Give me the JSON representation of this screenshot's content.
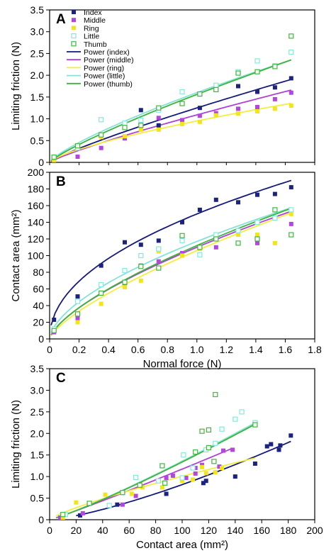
{
  "legend": {
    "title": "",
    "items": [
      {
        "key": "index",
        "label": "Index",
        "kind": "marker"
      },
      {
        "key": "middle",
        "label": "Middle",
        "kind": "marker"
      },
      {
        "key": "ring",
        "label": "Ring",
        "kind": "marker"
      },
      {
        "key": "little",
        "label": "Little",
        "kind": "marker"
      },
      {
        "key": "thumb",
        "label": "Thumb",
        "kind": "marker"
      },
      {
        "key": "index",
        "label": "Power (index)",
        "kind": "line"
      },
      {
        "key": "middle",
        "label": "Power (middle)",
        "kind": "line"
      },
      {
        "key": "ring",
        "label": "Power (ring)",
        "kind": "line"
      },
      {
        "key": "little",
        "label": "Power (little)",
        "kind": "line"
      },
      {
        "key": "thumb",
        "label": "Power (thumb)",
        "kind": "line"
      }
    ]
  },
  "colors": {
    "index": "#1a237e",
    "middle": "#b446e0",
    "ring": "#f2e51a",
    "little": "#86e8dc",
    "thumb": "#3db83a",
    "index_fit": "#13197a",
    "middle_fit": "#b03fd8",
    "ring_fit": "#f2ee3c",
    "little_fit": "#84e2d8",
    "thumb_fit": "#3cb43a"
  },
  "chart_data": [
    {
      "panel": "A",
      "type": "scatter",
      "title": "",
      "xlabel": "",
      "ylabel": "Limiting friction (N)",
      "xlim": [
        0,
        1.8
      ],
      "ylim": [
        0,
        3.5
      ],
      "yticks": [
        "0",
        "0.5",
        "1.0",
        "1.5",
        "2.0",
        "2.5",
        "3.0",
        "3.5"
      ],
      "xticks": [],
      "grid": false,
      "legend_position": "top-left",
      "series": [
        {
          "key": "index",
          "name": "Index",
          "filled": true,
          "x": [
            0.03,
            0.62,
            0.74,
            1.02,
            1.28,
            1.41,
            1.53,
            1.64
          ],
          "y": [
            0.1,
            1.2,
            0.85,
            1.25,
            1.75,
            1.62,
            1.72,
            1.93
          ]
        },
        {
          "key": "middle",
          "name": "Middle",
          "filled": true,
          "x": [
            0.03,
            0.19,
            0.35,
            0.51,
            0.62,
            0.74,
            0.9,
            1.02,
            1.13,
            1.28,
            1.41,
            1.53,
            1.64
          ],
          "y": [
            0.05,
            0.13,
            0.33,
            0.55,
            0.97,
            1.02,
            0.97,
            1.07,
            1.13,
            1.23,
            1.27,
            1.45,
            1.6
          ]
        },
        {
          "key": "ring",
          "name": "Ring",
          "filled": true,
          "x": [
            0.03,
            0.19,
            0.35,
            0.51,
            0.62,
            0.74,
            0.9,
            1.02,
            1.13,
            1.28,
            1.41,
            1.53,
            1.64
          ],
          "y": [
            0.05,
            0.37,
            0.58,
            0.6,
            0.75,
            0.75,
            0.88,
            0.93,
            1.08,
            1.12,
            1.17,
            1.23,
            1.3
          ]
        },
        {
          "key": "little",
          "name": "Little",
          "filled": false,
          "x": [
            0.03,
            0.19,
            0.35,
            0.51,
            0.62,
            0.74,
            0.9,
            1.02,
            1.13,
            1.28,
            1.41,
            1.53,
            1.64
          ],
          "y": [
            0.12,
            0.33,
            0.98,
            0.9,
            0.97,
            1.2,
            1.62,
            1.57,
            1.77,
            2.08,
            2.33,
            2.22,
            2.53
          ]
        },
        {
          "key": "thumb",
          "name": "Thumb",
          "filled": false,
          "x": [
            0.03,
            0.19,
            0.35,
            0.51,
            0.62,
            0.74,
            0.9,
            1.02,
            1.13,
            1.28,
            1.41,
            1.53,
            1.64
          ],
          "y": [
            0.12,
            0.38,
            0.63,
            0.8,
            0.85,
            1.25,
            1.35,
            1.57,
            1.67,
            2.05,
            2.08,
            2.2,
            2.9
          ]
        }
      ],
      "fits": [
        {
          "key": "index",
          "name": "Power (index)",
          "a": 1.25,
          "b": 0.85
        },
        {
          "key": "middle",
          "name": "Power (middle)",
          "a": 1.09,
          "b": 0.85
        },
        {
          "key": "ring",
          "name": "Power (ring)",
          "a": 0.95,
          "b": 0.72
        },
        {
          "key": "little",
          "name": "Power (little)",
          "a": 1.6,
          "b": 0.78
        },
        {
          "key": "thumb",
          "name": "Power (thumb)",
          "a": 1.56,
          "b": 0.83
        }
      ]
    },
    {
      "panel": "B",
      "type": "scatter",
      "title": "",
      "xlabel": "Normal force (N)",
      "ylabel": "Contact area (mm²)",
      "xlim": [
        0,
        1.8
      ],
      "ylim": [
        0,
        200
      ],
      "xticks": [
        "0",
        "0.2",
        "0.4",
        "0.6",
        "0.8",
        "1.0",
        "1.2",
        "1.4",
        "1.6",
        "1.8"
      ],
      "yticks": [
        "0",
        "20",
        "40",
        "60",
        "80",
        "100",
        "120",
        "140",
        "160",
        "180",
        "200"
      ],
      "grid": false,
      "series": [
        {
          "key": "index",
          "name": "Index",
          "filled": true,
          "x": [
            0.03,
            0.19,
            0.35,
            0.51,
            0.62,
            0.74,
            0.9,
            1.02,
            1.13,
            1.28,
            1.41,
            1.53,
            1.64
          ],
          "y": [
            23,
            51,
            88,
            116,
            113,
            118,
            140,
            155,
            167,
            164,
            173,
            174,
            182
          ]
        },
        {
          "key": "middle",
          "name": "Middle",
          "filled": true,
          "x": [
            0.03,
            0.19,
            0.35,
            0.51,
            0.62,
            0.74,
            0.9,
            1.02,
            1.13,
            1.28,
            1.41,
            1.53,
            1.64
          ],
          "y": [
            8,
            25,
            55,
            65,
            88,
            93,
            103,
            110,
            110,
            128,
            115,
            145,
            138
          ]
        },
        {
          "key": "ring",
          "name": "Ring",
          "filled": true,
          "x": [
            0.03,
            0.19,
            0.35,
            0.51,
            0.62,
            0.74,
            0.9,
            1.02,
            1.13,
            1.28,
            1.41,
            1.53,
            1.64
          ],
          "y": [
            10,
            20,
            42,
            62,
            70,
            105,
            100,
            108,
            125,
            125,
            125,
            115,
            150
          ]
        },
        {
          "key": "little",
          "name": "Little",
          "filled": false,
          "x": [
            0.03,
            0.19,
            0.35,
            0.51,
            0.62,
            0.74,
            0.9,
            1.02,
            1.13,
            1.28,
            1.41,
            1.53,
            1.64
          ],
          "y": [
            12,
            45,
            65,
            82,
            100,
            108,
            118,
            101,
            125,
            130,
            140,
            145,
            155
          ]
        },
        {
          "key": "thumb",
          "name": "Thumb",
          "filled": false,
          "x": [
            0.03,
            0.19,
            0.35,
            0.51,
            0.62,
            0.74,
            0.9,
            1.02,
            1.13,
            1.28,
            1.41,
            1.53,
            1.64
          ],
          "y": [
            10,
            30,
            55,
            68,
            87,
            85,
            124,
            110,
            120,
            115,
            120,
            155,
            125
          ]
        }
      ],
      "fits": [
        {
          "key": "index",
          "name": "Power (index)",
          "a": 150,
          "b": 0.48
        },
        {
          "key": "middle",
          "name": "Power (middle)",
          "a": 110,
          "b": 0.67
        },
        {
          "key": "ring",
          "name": "Power (ring)",
          "a": 106,
          "b": 0.72
        },
        {
          "key": "little",
          "name": "Power (little)",
          "a": 117,
          "b": 0.6
        },
        {
          "key": "thumb",
          "name": "Power (thumb)",
          "a": 112,
          "b": 0.68
        }
      ]
    },
    {
      "panel": "C",
      "type": "scatter",
      "title": "",
      "xlabel": "Contact area (mm²)",
      "ylabel": "Limiting friction (N)",
      "xlim": [
        0,
        200
      ],
      "ylim": [
        0,
        3.5
      ],
      "xticks": [
        "0",
        "20",
        "40",
        "60",
        "80",
        "100",
        "120",
        "140",
        "160",
        "180",
        "200"
      ],
      "yticks": [
        "0",
        "0.5",
        "1.0",
        "1.5",
        "2.0",
        "2.5",
        "3.0",
        "3.5"
      ],
      "grid": false,
      "series": [
        {
          "key": "index",
          "name": "Index",
          "filled": true,
          "x": [
            23,
            51,
            88,
            116,
            118,
            140,
            155,
            167,
            164,
            173,
            174,
            182
          ],
          "y": [
            0.1,
            0.35,
            0.6,
            0.85,
            0.9,
            1.0,
            1.3,
            1.75,
            1.7,
            1.62,
            1.72,
            1.95
          ]
        },
        {
          "key": "middle",
          "name": "Middle",
          "filled": true,
          "x": [
            8,
            25,
            55,
            65,
            88,
            93,
            103,
            110,
            110,
            128,
            115,
            131,
            138
          ],
          "y": [
            0.05,
            0.15,
            0.35,
            0.55,
            0.97,
            1.02,
            0.97,
            1.2,
            1.07,
            1.23,
            1.27,
            1.6,
            1.62
          ]
        },
        {
          "key": "ring",
          "name": "Ring",
          "filled": true,
          "x": [
            10,
            20,
            42,
            62,
            70,
            85,
            100,
            108,
            118,
            125,
            130,
            115
          ],
          "y": [
            0.05,
            0.4,
            0.58,
            0.6,
            0.75,
            0.75,
            0.9,
            0.93,
            1.08,
            1.1,
            1.2,
            1.22
          ]
        },
        {
          "key": "little",
          "name": "Little",
          "filled": false,
          "x": [
            12,
            45,
            65,
            82,
            100,
            108,
            118,
            101,
            125,
            130,
            140,
            145,
            155
          ],
          "y": [
            0.12,
            0.33,
            0.98,
            0.9,
            0.97,
            1.2,
            1.62,
            1.5,
            1.77,
            2.1,
            2.33,
            2.5,
            2.25
          ]
        },
        {
          "key": "thumb",
          "name": "Thumb",
          "filled": false,
          "x": [
            10,
            30,
            55,
            68,
            87,
            85,
            124,
            110,
            120,
            115,
            120,
            155,
            125
          ],
          "y": [
            0.12,
            0.38,
            0.63,
            0.8,
            0.85,
            1.25,
            1.35,
            1.57,
            1.67,
            2.05,
            2.08,
            2.2,
            2.9
          ]
        }
      ],
      "fits": [
        {
          "key": "index",
          "name": "Power (index)",
          "a": 0.0017,
          "b": 1.34,
          "xmin": 20,
          "xmax": 182
        },
        {
          "key": "middle",
          "name": "Power (middle)",
          "a": 0.0085,
          "b": 1.07,
          "xmin": 5,
          "xmax": 138
        },
        {
          "key": "ring",
          "name": "Power (ring)",
          "a": 0.0253,
          "b": 0.8,
          "xmin": 5,
          "xmax": 155
        },
        {
          "key": "little",
          "name": "Power (little)",
          "a": 0.0068,
          "b": 1.15,
          "xmin": 5,
          "xmax": 157
        },
        {
          "key": "thumb",
          "name": "Power (thumb)",
          "a": 0.0067,
          "b": 1.15,
          "xmin": 5,
          "xmax": 155
        }
      ]
    }
  ]
}
